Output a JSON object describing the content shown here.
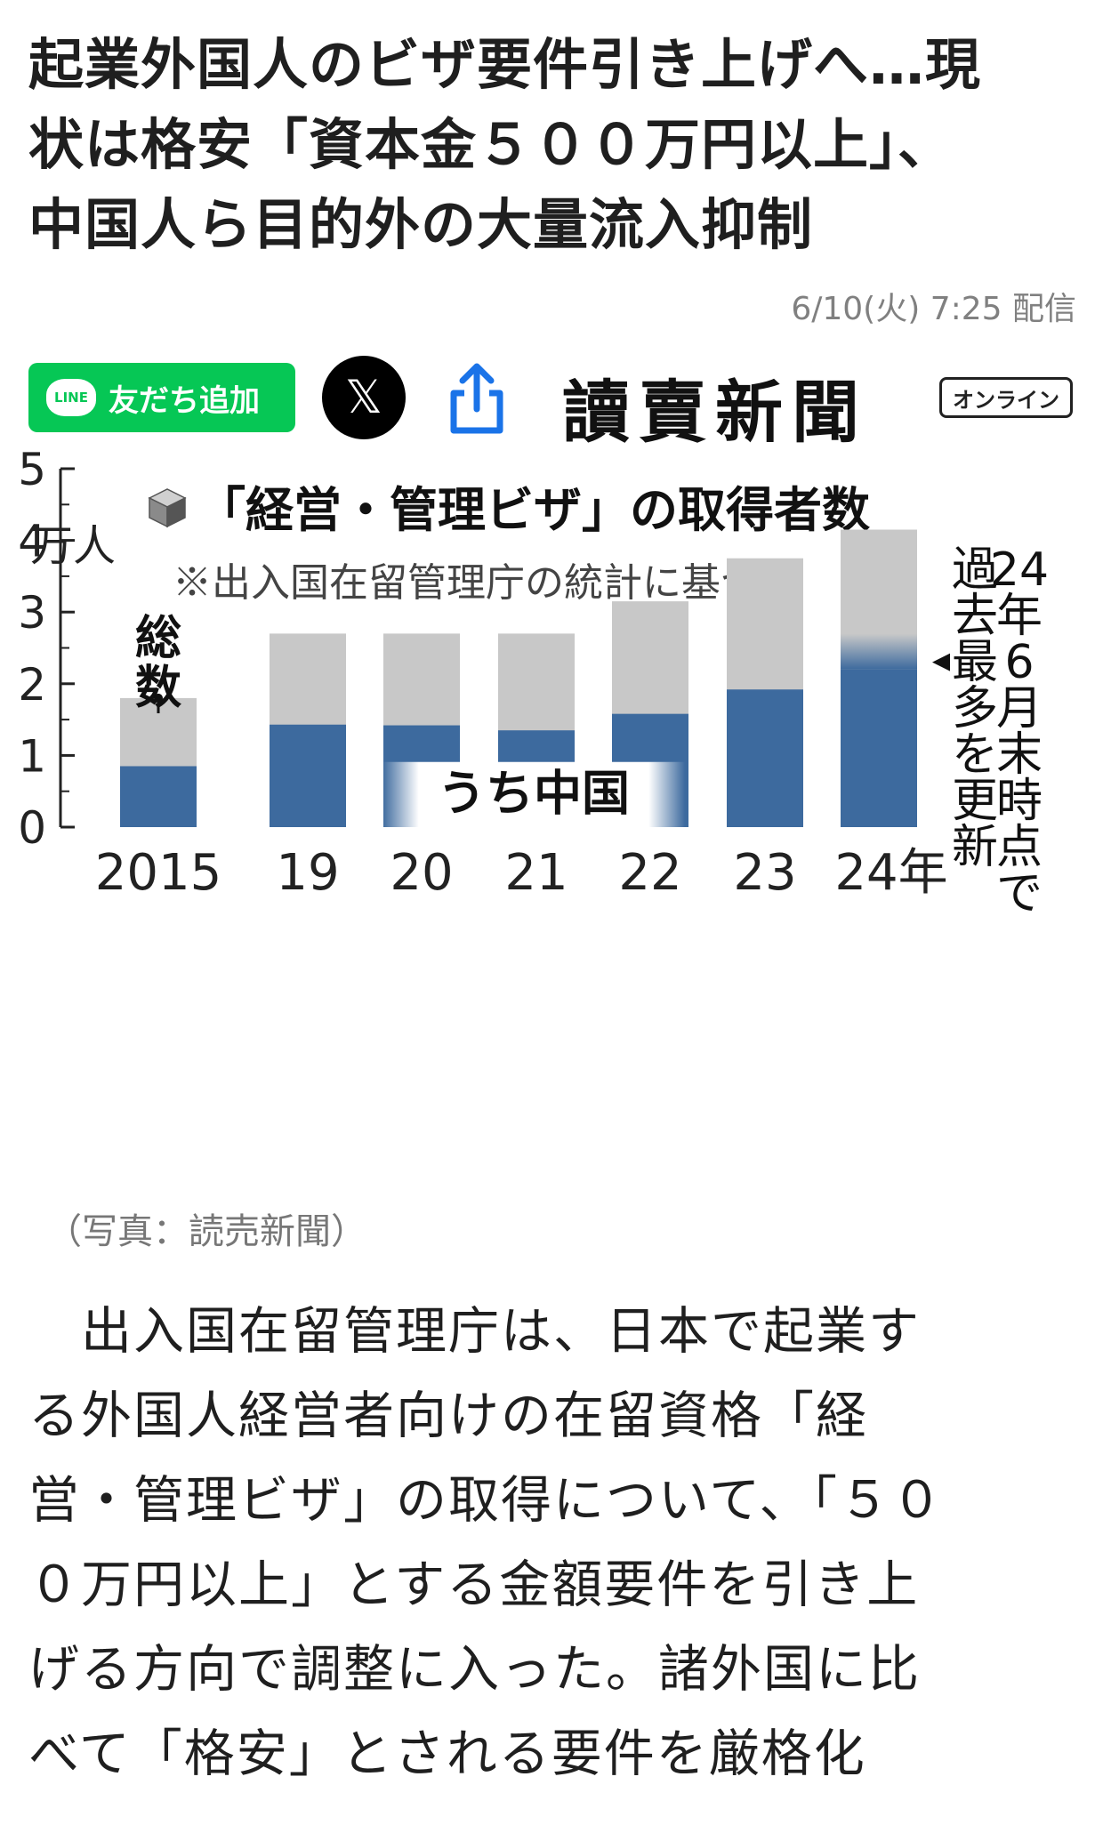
{
  "article": {
    "title_lines": [
      "起業外国人のビザ要件引き上げへ…現",
      "状は格安「資本金５００万円以上」、",
      "中国人ら目的外の大量流入抑制"
    ],
    "timestamp": "6/10(火) 7:25 配信",
    "caption": "（写真：読売新聞）",
    "body_lines": [
      "　出入国在留管理庁は、日本で起業す",
      "る外国人経営者向けの在留資格「経",
      "営・管理ビザ」の取得について、「５０",
      "０万円以上」とする金額要件を引き上",
      "げる方向で調整に入った。諸外国に比",
      "べて「格安」とされる要件を厳格化"
    ]
  },
  "share": {
    "line_logo": "LINE",
    "line_label": "友だち追加",
    "x_label": "𝕏",
    "share_icon": "share-icon",
    "brand": "讀賣新聞",
    "brand_badge": "オンライン"
  },
  "colors": {
    "line_green": "#06c755",
    "bar_total": "#c8c8c8",
    "bar_china": "#3d6a9e",
    "text": "#222222"
  },
  "chart_data": {
    "type": "bar",
    "title": "「経営・管理ビザ」の取得者数",
    "subtitle": "※出入国在留管理庁の統計に基づく",
    "ylabel": "万人",
    "ylim": [
      0,
      5
    ],
    "yticks": [
      "0",
      "1",
      "2",
      "3",
      "4",
      "5"
    ],
    "categories": [
      "2015",
      "19",
      "20",
      "21",
      "22",
      "23",
      "24年"
    ],
    "series": [
      {
        "name": "総数",
        "values": [
          1.8,
          2.7,
          2.7,
          2.7,
          3.15,
          3.75,
          4.15
        ]
      },
      {
        "name": "うち中国",
        "values": [
          0.85,
          1.43,
          1.42,
          1.35,
          1.58,
          1.92,
          2.2
        ]
      }
    ],
    "annotation_total": "総数",
    "annotation_china": "うち中国",
    "annotation_2024_a": "24年6月末時点で",
    "annotation_2024_b": "過去最多を更新",
    "grid": false,
    "stacked_overlay": true
  }
}
